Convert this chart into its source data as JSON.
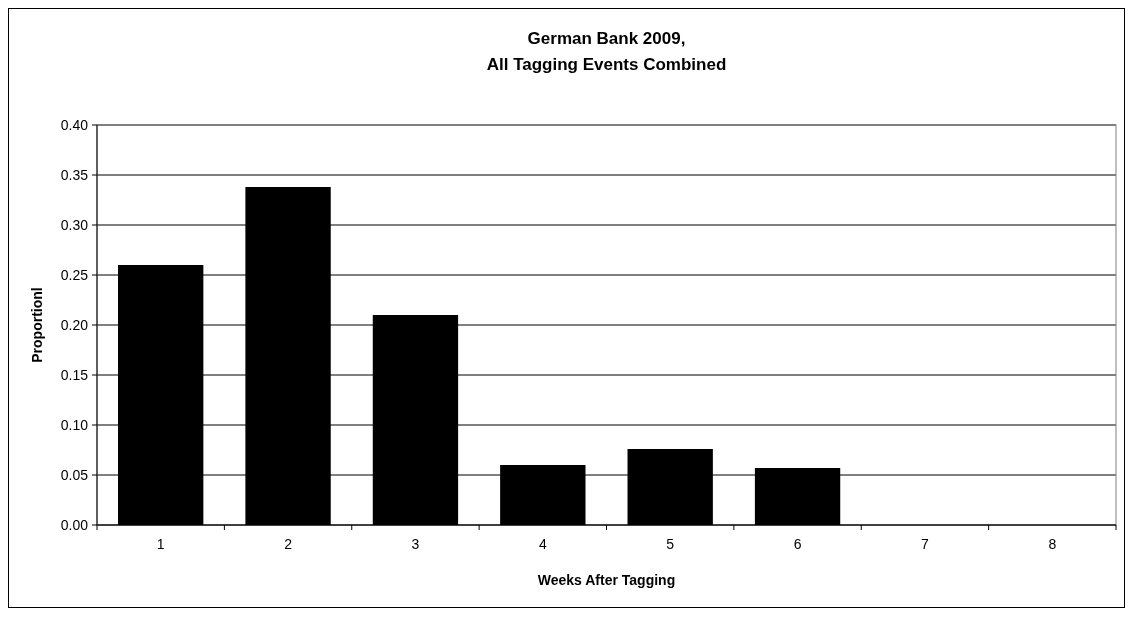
{
  "chart_data": {
    "type": "bar",
    "title": "German Bank 2009,\nAll Tagging Events Combined",
    "xlabel": "Weeks After Tagging",
    "ylabel": "Proportionl",
    "categories": [
      "1",
      "2",
      "3",
      "4",
      "5",
      "6",
      "7",
      "8"
    ],
    "values": [
      0.26,
      0.338,
      0.21,
      0.06,
      0.076,
      0.057,
      0,
      0
    ],
    "color": "#000000",
    "ylim": [
      0,
      0.4
    ],
    "yticks": [
      {
        "value": 0,
        "label": "0.00"
      },
      {
        "value": 0.05,
        "label": "0.05"
      },
      {
        "value": 0.1,
        "label": "0.10"
      },
      {
        "value": 0.15,
        "label": "0.15"
      },
      {
        "value": 0.2,
        "label": "0.20"
      },
      {
        "value": 0.25,
        "label": "0.25"
      },
      {
        "value": 0.3,
        "label": "0.30"
      },
      {
        "value": 0.35,
        "label": "0.35"
      },
      {
        "value": 0.4,
        "label": "0.40"
      }
    ],
    "grid": "y"
  }
}
